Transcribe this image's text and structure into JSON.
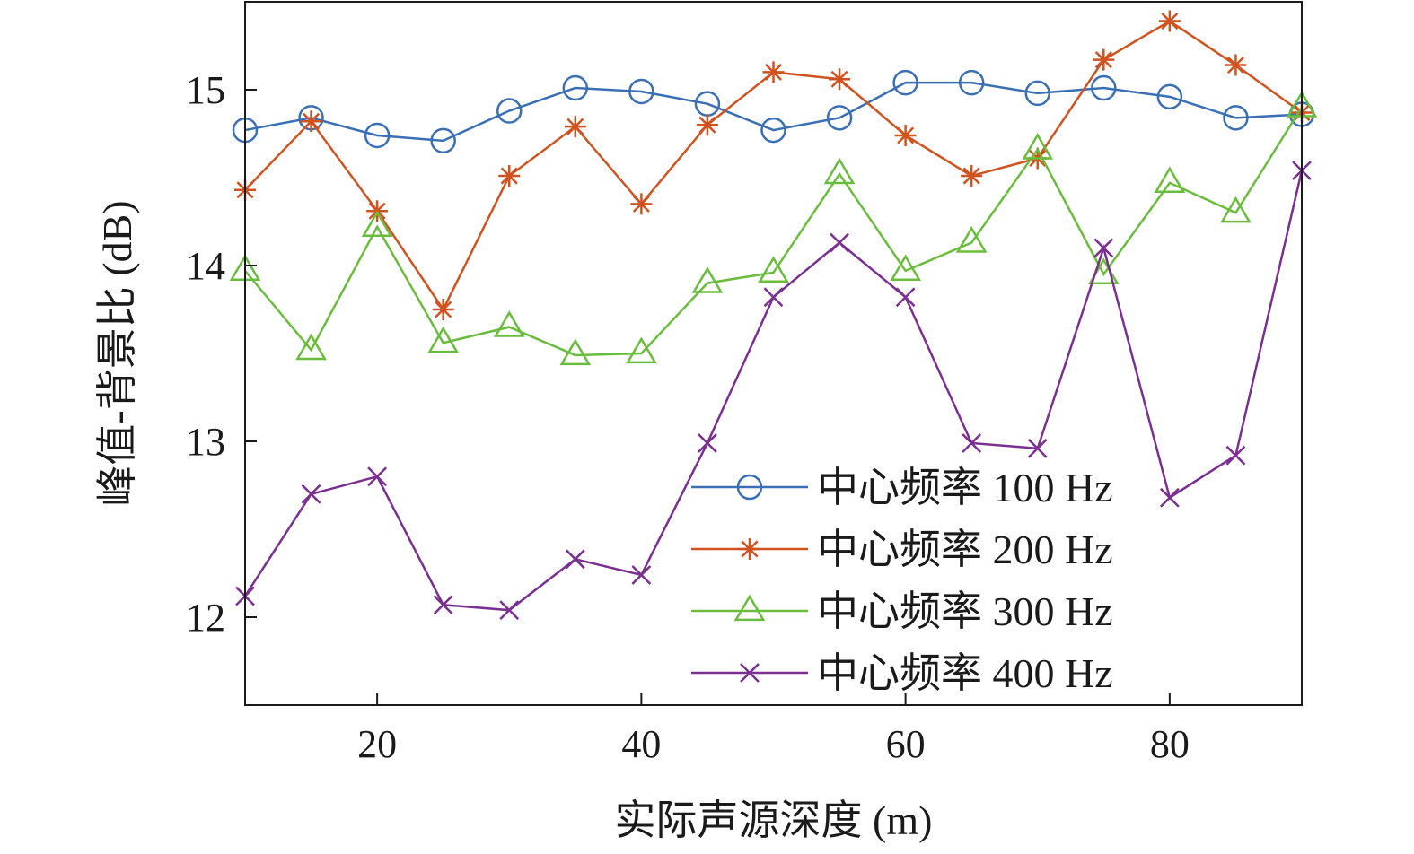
{
  "chart_data": {
    "type": "line",
    "xlabel": "实际声源深度 (m)",
    "ylabel": "峰值-背景比 (dB)",
    "xlim": [
      10,
      90
    ],
    "ylim": [
      11.5,
      15.5
    ],
    "xticks": [
      20,
      40,
      60,
      80
    ],
    "yticks": [
      12,
      13,
      14,
      15
    ],
    "grid": false,
    "legend_position": "bottom-right",
    "x": [
      10,
      15,
      20,
      25,
      30,
      35,
      40,
      45,
      50,
      55,
      60,
      65,
      70,
      75,
      80,
      85,
      90
    ],
    "series": [
      {
        "name": "中心频率 100 Hz",
        "color": "#3a6fb5",
        "marker": "circle",
        "values": [
          14.77,
          14.84,
          14.74,
          14.71,
          14.88,
          15.01,
          14.99,
          14.92,
          14.77,
          14.84,
          15.04,
          15.04,
          14.98,
          15.01,
          14.96,
          14.84,
          14.86
        ]
      },
      {
        "name": "中心频率 200 Hz",
        "color": "#d0531f",
        "marker": "asterisk",
        "values": [
          14.43,
          14.82,
          14.31,
          13.75,
          14.51,
          14.79,
          14.35,
          14.8,
          15.1,
          15.06,
          14.74,
          14.51,
          14.61,
          15.17,
          15.39,
          15.14,
          14.87
        ]
      },
      {
        "name": "中心频率 300 Hz",
        "color": "#6abd3c",
        "marker": "triangle",
        "values": [
          13.97,
          13.52,
          14.22,
          13.56,
          13.65,
          13.49,
          13.5,
          13.9,
          13.96,
          14.52,
          13.97,
          14.13,
          14.66,
          13.95,
          14.47,
          14.3,
          14.9
        ]
      },
      {
        "name": "中心频率 400 Hz",
        "color": "#7a2f91",
        "marker": "x",
        "values": [
          12.12,
          12.7,
          12.8,
          12.07,
          12.04,
          12.33,
          12.24,
          12.99,
          13.82,
          14.13,
          13.82,
          12.99,
          12.96,
          14.1,
          12.68,
          12.92,
          14.54
        ]
      }
    ]
  }
}
